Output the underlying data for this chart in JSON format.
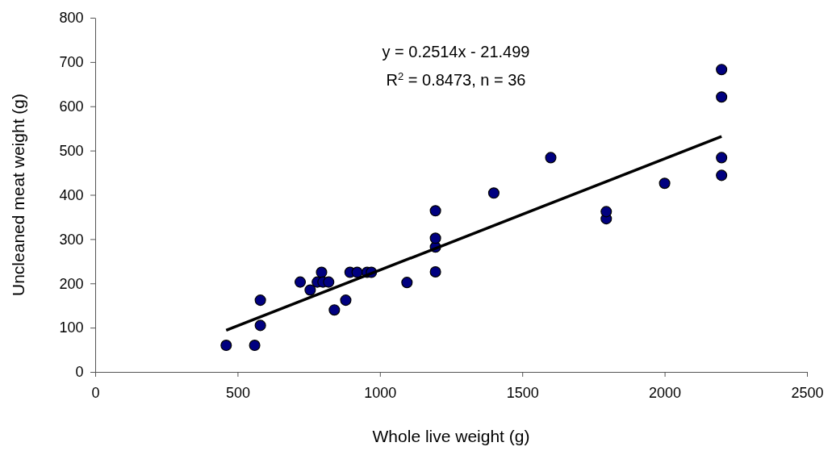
{
  "chart_data": {
    "type": "scatter",
    "xlabel": "Whole live weight (g)",
    "ylabel": "Uncleaned meat weight (g)",
    "annotations": [
      "y = 0.2514x - 21.499",
      "R$^{2}$ = 0.8473, n = 36"
    ],
    "xlim": [
      0,
      2500
    ],
    "xticks": [
      0,
      500,
      1000,
      1500,
      2000,
      2500
    ],
    "ylim": [
      0,
      800
    ],
    "yticks": [
      0,
      100,
      200,
      300,
      400,
      500,
      600,
      700,
      800
    ],
    "grid": false,
    "series": [
      {
        "marker": "circle",
        "color": "#000080",
        "x": [
          460,
          560,
          580,
          580,
          720,
          755,
          780,
          795,
          800,
          820,
          840,
          880,
          895,
          920,
          955,
          970,
          1095,
          1195,
          1195,
          1195,
          1195,
          1400,
          1600,
          1795,
          1795,
          2000,
          2200,
          2200,
          2200,
          2200
        ],
        "values": [
          60,
          60,
          105,
          162,
          203,
          185,
          203,
          225,
          203,
          203,
          140,
          162,
          225,
          225,
          225,
          225,
          202,
          226,
          282,
          302,
          364,
          404,
          484,
          346,
          362,
          426,
          444,
          484,
          621,
          683
        ]
      },
      {
        "type": "line",
        "color": "#000000",
        "line_style": "solid",
        "x": [
          460,
          2200
        ],
        "values": [
          94,
          532
        ]
      }
    ]
  }
}
